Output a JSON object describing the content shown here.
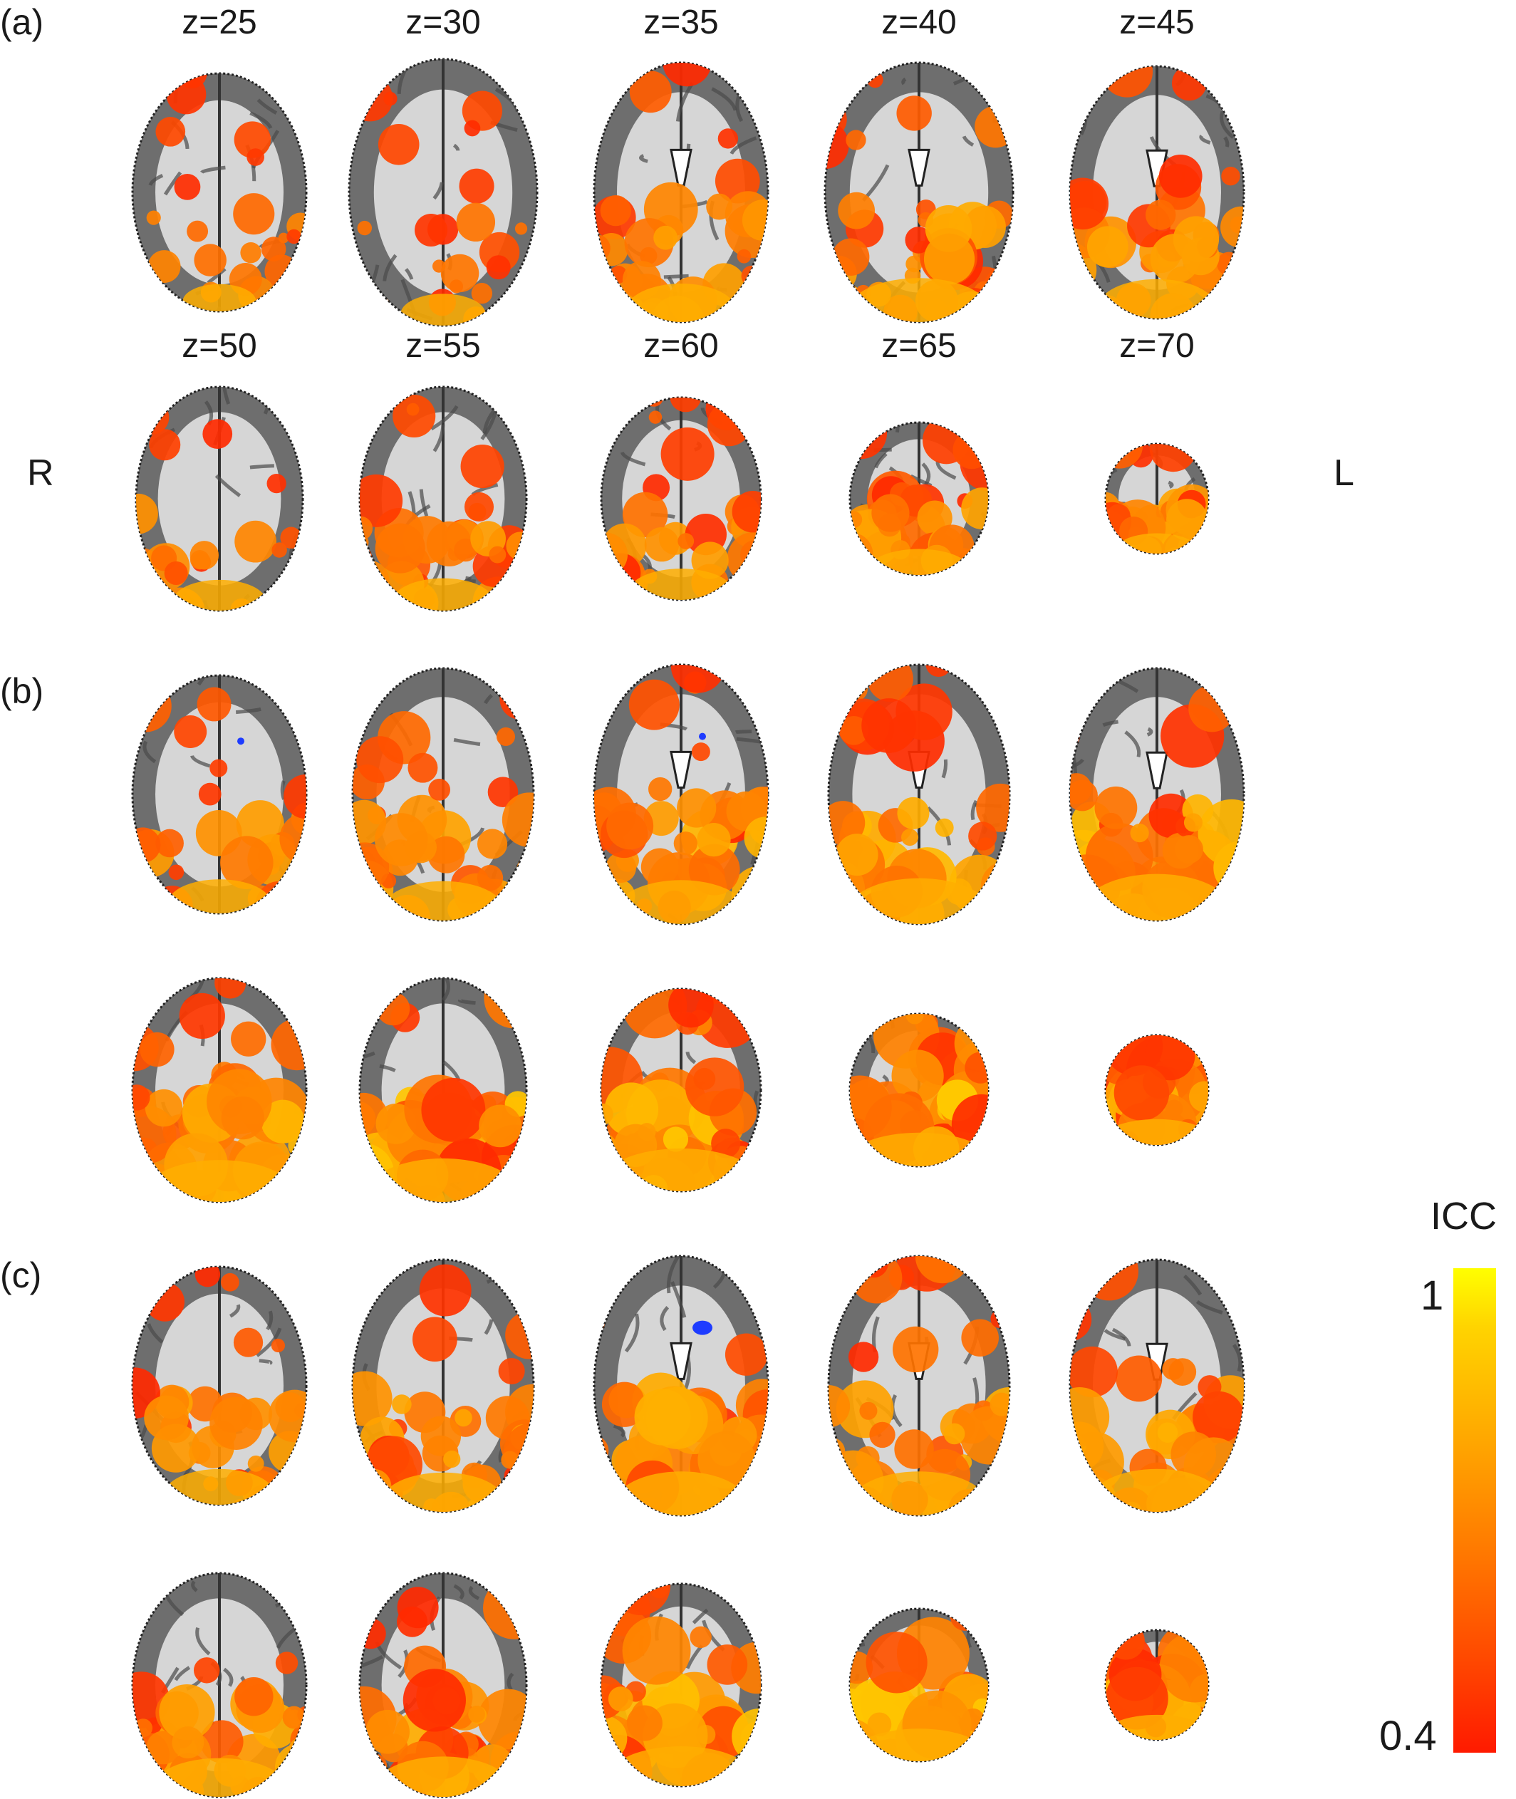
{
  "panels": [
    {
      "label": "(a)",
      "z_labels": [
        "z=25",
        "z=30",
        "z=35",
        "z=40",
        "z=45",
        "z=50",
        "z=55",
        "z=60",
        "z=65",
        "z=70"
      ]
    },
    {
      "label": "(b)"
    },
    {
      "label": "(c)"
    }
  ],
  "orientation": {
    "right": "R",
    "left": "L"
  },
  "colorbar": {
    "title": "ICC",
    "max_label": "1",
    "min_label": "0.4",
    "max": 1,
    "min": 0.4,
    "colors": [
      "#ffff00",
      "#ff1a00"
    ]
  },
  "icons": [
    "brain-slice"
  ],
  "colors": {
    "activation_low": "#ff2a00",
    "activation_high": "#ffd400",
    "negative": "#1e3cff",
    "gray_matter": "#6e6e6e",
    "white_matter": "#d6d6d6"
  }
}
